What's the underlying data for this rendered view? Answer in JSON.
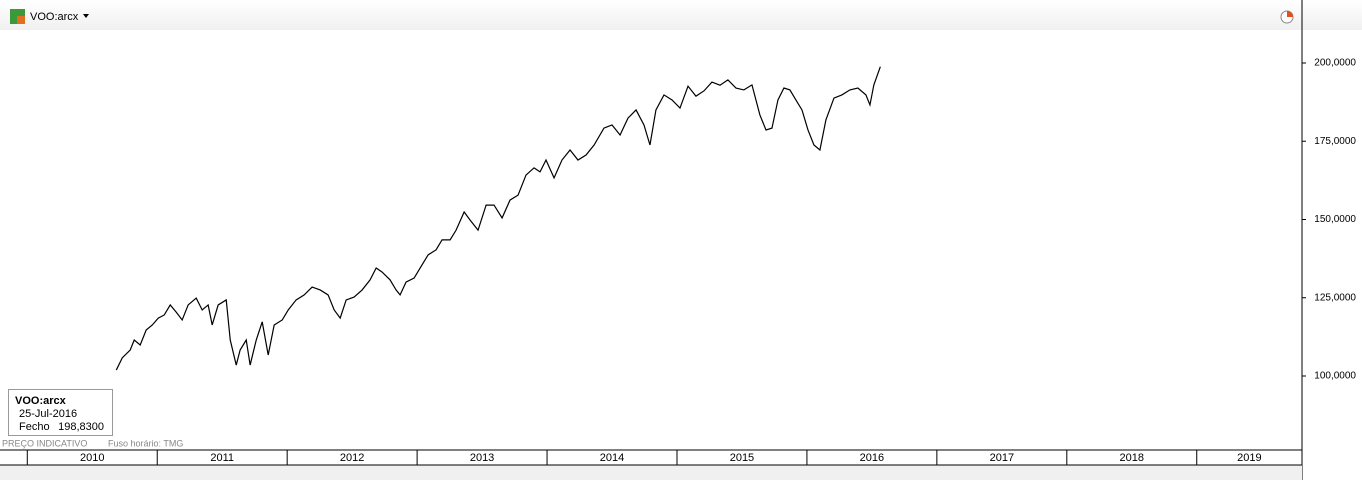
{
  "header": {
    "symbol": "VOO:arcx"
  },
  "tooltip": {
    "symbol": "VOO:arcx",
    "date": "25-Jul-2016",
    "label": "Fecho",
    "value": "198,8300"
  },
  "footer": {
    "left": "PREÇO INDICATIVO",
    "right": "Fuso horário: TMG"
  },
  "chart_data": {
    "type": "line",
    "x": [
      2010.685,
      2010.731,
      2010.792,
      2010.823,
      2010.869,
      2010.915,
      2010.962,
      2011.008,
      2011.054,
      2011.1,
      2011.146,
      2011.192,
      2011.238,
      2011.3,
      2011.346,
      2011.392,
      2011.423,
      2011.469,
      2011.531,
      2011.562,
      2011.608,
      2011.638,
      2011.685,
      2011.715,
      2011.762,
      2011.808,
      2011.854,
      2011.9,
      2011.962,
      2012.008,
      2012.069,
      2012.131,
      2012.192,
      2012.254,
      2012.315,
      2012.362,
      2012.408,
      2012.454,
      2012.515,
      2012.577,
      2012.638,
      2012.685,
      2012.731,
      2012.792,
      2012.838,
      2012.869,
      2012.915,
      2012.977,
      2013.023,
      2013.085,
      2013.146,
      2013.192,
      2013.254,
      2013.3,
      2013.362,
      2013.408,
      2013.469,
      2013.531,
      2013.592,
      2013.654,
      2013.715,
      2013.777,
      2013.838,
      2013.9,
      2013.946,
      2013.992,
      2014.054,
      2014.115,
      2014.177,
      2014.238,
      2014.3,
      2014.362,
      2014.438,
      2014.5,
      2014.562,
      2014.623,
      2014.685,
      2014.746,
      2014.792,
      2014.838,
      2014.9,
      2014.962,
      2015.023,
      2015.085,
      2015.146,
      2015.208,
      2015.269,
      2015.331,
      2015.392,
      2015.454,
      2015.515,
      2015.577,
      2015.638,
      2015.685,
      2015.731,
      2015.777,
      2015.823,
      2015.869,
      2015.915,
      2015.962,
      2016.008,
      2016.054,
      2016.1,
      2016.146,
      2016.208,
      2016.269,
      2016.331,
      2016.392,
      2016.454,
      2016.485,
      2016.515,
      2016.565
    ],
    "series": [
      {
        "name": "VOO:arcx",
        "color": "#000000",
        "values": [
          101.9,
          105.8,
          108.3,
          111.5,
          109.9,
          114.7,
          116.3,
          118.5,
          119.5,
          122.7,
          120.4,
          117.9,
          122.7,
          124.9,
          121.1,
          122.7,
          116.3,
          122.7,
          124.3,
          111.5,
          103.5,
          108.3,
          111.5,
          103.5,
          111.5,
          117.3,
          106.7,
          116.3,
          117.9,
          121.1,
          124.3,
          125.9,
          128.4,
          127.5,
          125.9,
          121.1,
          118.5,
          124.3,
          125.2,
          127.5,
          130.7,
          134.5,
          133.2,
          130.7,
          127.5,
          125.9,
          130.0,
          131.3,
          134.5,
          138.7,
          140.3,
          143.5,
          143.5,
          146.6,
          152.4,
          149.8,
          146.6,
          154.6,
          154.6,
          150.5,
          156.2,
          157.8,
          164.2,
          166.5,
          165.2,
          169.0,
          163.3,
          169.0,
          172.2,
          169.0,
          170.6,
          173.8,
          179.2,
          180.2,
          177.0,
          182.4,
          185.0,
          180.2,
          173.8,
          185.0,
          189.8,
          188.2,
          185.6,
          192.6,
          189.4,
          191.1,
          193.9,
          192.9,
          194.6,
          192.0,
          191.4,
          193.0,
          183.4,
          178.6,
          179.2,
          188.2,
          192.0,
          191.4,
          188.2,
          185.0,
          178.6,
          173.8,
          172.2,
          181.8,
          188.8,
          189.8,
          191.4,
          192.0,
          189.8,
          186.6,
          193.0,
          198.83
        ]
      }
    ],
    "xlim": [
      2009.79,
      2019.81
    ],
    "xticks": [
      2010,
      2011,
      2012,
      2013,
      2014,
      2015,
      2016,
      2017,
      2018,
      2019
    ],
    "ylim": [
      76.36,
      210.54
    ],
    "yticks": [
      {
        "value": 100,
        "label": "100,0000"
      },
      {
        "value": 125,
        "label": "125,0000"
      },
      {
        "value": 150,
        "label": "150,0000"
      },
      {
        "value": 175,
        "label": "175,0000"
      },
      {
        "value": 200,
        "label": "200,0000"
      }
    ]
  }
}
